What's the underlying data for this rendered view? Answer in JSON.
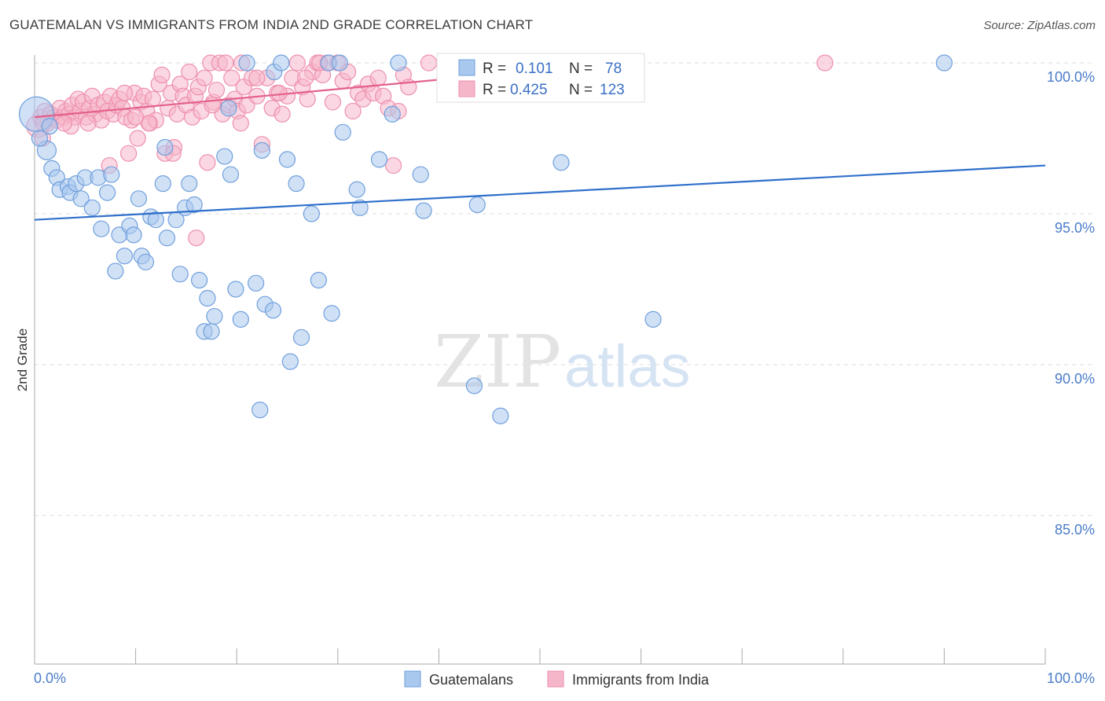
{
  "title": "GUATEMALAN VS IMMIGRANTS FROM INDIA 2ND GRADE CORRELATION CHART",
  "source": "Source: ZipAtlas.com",
  "watermark": {
    "zip": "ZIP",
    "atlas": "atlas"
  },
  "colors": {
    "blue_fill": "#a9c8ee",
    "blue_stroke": "#6f9fdc",
    "blue_line": "#2f6fcb",
    "pink_fill": "#f6b6ca",
    "pink_stroke": "#ee8fae",
    "pink_line": "#e4608b",
    "tick_text": "#4a7cc9",
    "grid": "#dddddd"
  },
  "legend_box": {
    "rows": [
      {
        "r_label": "R =",
        "r_value": "0.101",
        "n_label": "N =",
        "n_value": "78"
      },
      {
        "r_label": "R =",
        "r_value": "0.425",
        "n_label": "N =",
        "n_value": "123"
      }
    ]
  },
  "bottom_legend": {
    "items": [
      {
        "label": "Guatemalans"
      },
      {
        "label": "Immigrants from India"
      }
    ]
  },
  "chart_data": {
    "type": "scatter",
    "title": "GUATEMALAN VS IMMIGRANTS FROM INDIA 2ND GRADE CORRELATION CHART",
    "xlabel": "",
    "ylabel": "2nd Grade",
    "xlim": [
      0,
      100
    ],
    "ylim": [
      80.4,
      100.7
    ],
    "x_tick_labels": [
      "0.0%",
      "100.0%"
    ],
    "y_ticks": [
      100,
      95,
      90,
      85
    ],
    "y_tick_labels": [
      "100.0%",
      "95.0%",
      "90.0%",
      "85.0%"
    ],
    "grid": "horizontal dashed",
    "series": [
      {
        "name": "Guatemalans",
        "color": "#6f9fdc",
        "r": 0.101,
        "n": 78,
        "trend": {
          "x": [
            0,
            100
          ],
          "y": [
            94.8,
            96.6
          ]
        },
        "points": [
          [
            0.2,
            98.3,
            22
          ],
          [
            1.2,
            97.1,
            12
          ],
          [
            1.7,
            96.5,
            10
          ],
          [
            2.2,
            96.2,
            10
          ],
          [
            2.5,
            95.8,
            10
          ],
          [
            3.3,
            95.9,
            10
          ],
          [
            3.5,
            95.7,
            10
          ],
          [
            4.1,
            96.0,
            10
          ],
          [
            4.6,
            95.5,
            10
          ],
          [
            5.0,
            96.2,
            10
          ],
          [
            5.7,
            95.2,
            10
          ],
          [
            6.3,
            96.2,
            10
          ],
          [
            6.6,
            94.5,
            10
          ],
          [
            7.2,
            95.7,
            10
          ],
          [
            7.6,
            96.3,
            10
          ],
          [
            8.0,
            93.1,
            10
          ],
          [
            8.4,
            94.3,
            10
          ],
          [
            8.9,
            93.6,
            10
          ],
          [
            9.4,
            94.6,
            10
          ],
          [
            9.8,
            94.3,
            10
          ],
          [
            10.3,
            95.5,
            10
          ],
          [
            10.6,
            93.6,
            10
          ],
          [
            11.0,
            93.4,
            10
          ],
          [
            11.5,
            94.9,
            10
          ],
          [
            12.0,
            94.8,
            10
          ],
          [
            12.7,
            96.0,
            10
          ],
          [
            12.9,
            97.2,
            10
          ],
          [
            13.1,
            94.2,
            10
          ],
          [
            14.0,
            94.8,
            10
          ],
          [
            14.4,
            93.0,
            10
          ],
          [
            14.9,
            95.2,
            10
          ],
          [
            15.3,
            96.0,
            10
          ],
          [
            15.8,
            95.3,
            10
          ],
          [
            16.3,
            92.8,
            10
          ],
          [
            16.8,
            91.1,
            10
          ],
          [
            17.1,
            92.2,
            10
          ],
          [
            17.5,
            91.1,
            10
          ],
          [
            17.8,
            91.6,
            10
          ],
          [
            18.8,
            96.9,
            10
          ],
          [
            19.2,
            98.5,
            10
          ],
          [
            19.4,
            96.3,
            10
          ],
          [
            19.9,
            92.5,
            10
          ],
          [
            20.4,
            91.5,
            10
          ],
          [
            21.0,
            100.0,
            10
          ],
          [
            21.9,
            92.7,
            10
          ],
          [
            22.3,
            88.5,
            10
          ],
          [
            22.5,
            97.1,
            10
          ],
          [
            22.8,
            92.0,
            10
          ],
          [
            23.6,
            91.8,
            10
          ],
          [
            23.7,
            99.7,
            10
          ],
          [
            24.4,
            100.0,
            10
          ],
          [
            25.0,
            96.8,
            10
          ],
          [
            25.3,
            90.1,
            10
          ],
          [
            25.9,
            96.0,
            10
          ],
          [
            26.4,
            90.9,
            10
          ],
          [
            27.4,
            95.0,
            10
          ],
          [
            28.1,
            92.8,
            10
          ],
          [
            29.1,
            100.0,
            10
          ],
          [
            29.4,
            91.7,
            10
          ],
          [
            30.2,
            100.0,
            10
          ],
          [
            30.5,
            97.7,
            10
          ],
          [
            31.9,
            95.8,
            10
          ],
          [
            32.2,
            95.2,
            10
          ],
          [
            34.1,
            96.8,
            10
          ],
          [
            35.4,
            98.3,
            10
          ],
          [
            36.0,
            100.0,
            10
          ],
          [
            38.2,
            96.3,
            10
          ],
          [
            38.5,
            95.1,
            10
          ],
          [
            43.5,
            89.3,
            10
          ],
          [
            43.8,
            95.3,
            10
          ],
          [
            46.1,
            88.3,
            10
          ],
          [
            52.1,
            96.7,
            10
          ],
          [
            55.4,
            100.0,
            10
          ],
          [
            57.3,
            100.0,
            10
          ],
          [
            61.2,
            91.5,
            10
          ],
          [
            90.0,
            100.0,
            10
          ],
          [
            0.5,
            97.5,
            10
          ],
          [
            1.5,
            97.9,
            10
          ]
        ]
      },
      {
        "name": "Immigrants from India",
        "color": "#ee8fae",
        "r": 0.425,
        "n": 123,
        "trend": {
          "x": [
            0,
            58
          ],
          "y": [
            98.2,
            100.0
          ]
        },
        "points": [
          [
            0.3,
            97.9,
            14
          ],
          [
            0.6,
            98.2,
            10
          ],
          [
            0.8,
            97.5,
            10
          ],
          [
            1.0,
            98.4,
            10
          ],
          [
            1.3,
            98.0,
            10
          ],
          [
            1.6,
            98.3,
            10
          ],
          [
            1.9,
            98.2,
            10
          ],
          [
            2.2,
            98.1,
            10
          ],
          [
            2.5,
            98.5,
            10
          ],
          [
            2.8,
            98.2,
            10
          ],
          [
            3.1,
            98.4,
            10
          ],
          [
            3.4,
            98.3,
            10
          ],
          [
            3.7,
            98.6,
            10
          ],
          [
            4.0,
            98.2,
            10
          ],
          [
            4.3,
            98.8,
            10
          ],
          [
            4.5,
            98.4,
            10
          ],
          [
            4.8,
            98.7,
            10
          ],
          [
            5.1,
            98.2,
            10
          ],
          [
            5.4,
            98.5,
            10
          ],
          [
            5.7,
            98.9,
            10
          ],
          [
            6.0,
            98.3,
            10
          ],
          [
            6.3,
            98.6,
            10
          ],
          [
            6.6,
            98.1,
            10
          ],
          [
            6.9,
            98.7,
            10
          ],
          [
            7.2,
            98.4,
            10
          ],
          [
            7.5,
            98.9,
            10
          ],
          [
            7.8,
            98.3,
            10
          ],
          [
            8.1,
            98.6,
            10
          ],
          [
            8.4,
            98.8,
            10
          ],
          [
            8.7,
            98.5,
            10
          ],
          [
            9.0,
            98.2,
            10
          ],
          [
            9.3,
            97.0,
            10
          ],
          [
            9.6,
            98.1,
            10
          ],
          [
            9.9,
            99.0,
            10
          ],
          [
            10.2,
            97.5,
            10
          ],
          [
            10.5,
            98.7,
            10
          ],
          [
            10.8,
            98.9,
            10
          ],
          [
            11.1,
            98.4,
            10
          ],
          [
            11.4,
            98.0,
            10
          ],
          [
            11.7,
            98.8,
            10
          ],
          [
            12.0,
            98.1,
            10
          ],
          [
            12.3,
            99.3,
            10
          ],
          [
            12.6,
            99.6,
            10
          ],
          [
            12.9,
            97.0,
            10
          ],
          [
            13.2,
            98.5,
            10
          ],
          [
            13.5,
            99.0,
            10
          ],
          [
            13.8,
            97.2,
            10
          ],
          [
            14.1,
            98.3,
            10
          ],
          [
            14.4,
            99.3,
            10
          ],
          [
            14.7,
            98.9,
            10
          ],
          [
            15.0,
            98.6,
            10
          ],
          [
            15.3,
            99.7,
            10
          ],
          [
            15.6,
            98.2,
            10
          ],
          [
            15.9,
            98.9,
            10
          ],
          [
            16.2,
            99.2,
            10
          ],
          [
            16.5,
            98.4,
            10
          ],
          [
            16.8,
            99.5,
            10
          ],
          [
            17.1,
            96.7,
            10
          ],
          [
            17.4,
            100.0,
            10
          ],
          [
            17.7,
            98.7,
            10
          ],
          [
            18.0,
            99.1,
            10
          ],
          [
            18.3,
            100.0,
            10
          ],
          [
            18.6,
            98.3,
            10
          ],
          [
            18.9,
            100.0,
            10
          ],
          [
            19.2,
            98.6,
            10
          ],
          [
            19.5,
            99.5,
            10
          ],
          [
            19.8,
            98.8,
            10
          ],
          [
            20.1,
            98.4,
            10
          ],
          [
            20.4,
            98.0,
            10
          ],
          [
            20.7,
            99.2,
            10
          ],
          [
            21.0,
            98.6,
            10
          ],
          [
            21.5,
            99.5,
            10
          ],
          [
            22.0,
            98.9,
            10
          ],
          [
            22.5,
            97.3,
            10
          ],
          [
            23.0,
            99.5,
            10
          ],
          [
            23.5,
            98.5,
            10
          ],
          [
            24.0,
            99.0,
            10
          ],
          [
            24.5,
            98.3,
            10
          ],
          [
            25.0,
            98.9,
            10
          ],
          [
            25.5,
            99.5,
            10
          ],
          [
            26.0,
            100.0,
            10
          ],
          [
            26.5,
            99.2,
            10
          ],
          [
            27.0,
            98.8,
            10
          ],
          [
            27.5,
            99.7,
            10
          ],
          [
            28.0,
            100.0,
            10
          ],
          [
            28.5,
            99.6,
            10
          ],
          [
            29.0,
            100.0,
            10
          ],
          [
            29.5,
            98.7,
            10
          ],
          [
            30.0,
            100.0,
            10
          ],
          [
            30.5,
            99.4,
            10
          ],
          [
            31.0,
            99.7,
            10
          ],
          [
            31.5,
            98.4,
            10
          ],
          [
            32.0,
            99.0,
            10
          ],
          [
            32.5,
            98.8,
            10
          ],
          [
            33.0,
            99.3,
            10
          ],
          [
            33.5,
            99.0,
            10
          ],
          [
            34.0,
            99.5,
            10
          ],
          [
            34.5,
            98.9,
            10
          ],
          [
            35.0,
            98.5,
            10
          ],
          [
            35.5,
            96.6,
            10
          ],
          [
            36.0,
            98.4,
            10
          ],
          [
            36.5,
            99.6,
            10
          ],
          [
            37.0,
            99.2,
            10
          ],
          [
            39.0,
            100.0,
            10
          ],
          [
            41.0,
            100.0,
            10
          ],
          [
            43.0,
            100.0,
            10
          ],
          [
            78.2,
            100.0,
            10
          ],
          [
            3.6,
            97.9,
            10
          ],
          [
            5.3,
            98.0,
            10
          ],
          [
            7.4,
            96.6,
            10
          ],
          [
            11.3,
            98.0,
            10
          ],
          [
            13.7,
            97.0,
            10
          ],
          [
            16.0,
            94.2,
            10
          ],
          [
            2.9,
            98.0,
            10
          ],
          [
            8.9,
            99.0,
            10
          ],
          [
            10.0,
            98.2,
            10
          ],
          [
            17.6,
            98.6,
            10
          ],
          [
            20.5,
            100.0,
            10
          ],
          [
            22.0,
            99.5,
            10
          ],
          [
            24.2,
            99.0,
            10
          ],
          [
            26.8,
            99.5,
            10
          ],
          [
            28.2,
            100.0,
            10
          ],
          [
            0.9,
            98.0,
            10
          ]
        ]
      }
    ]
  }
}
